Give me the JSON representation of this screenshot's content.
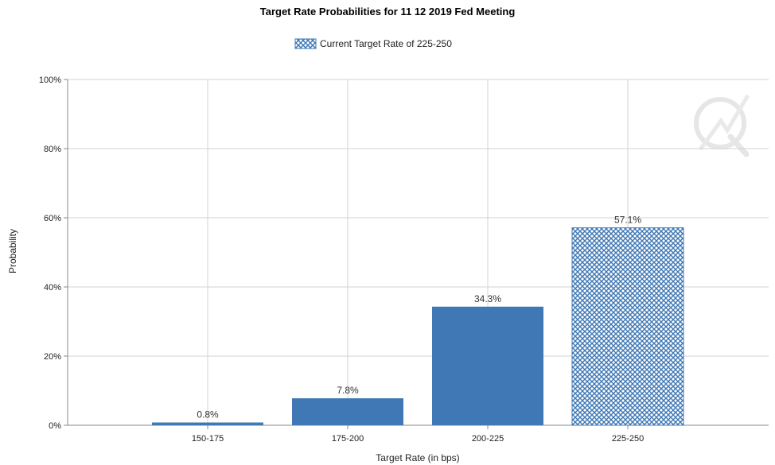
{
  "chart_data": {
    "type": "bar",
    "title": "Target Rate Probabilities for 11 12 2019 Fed Meeting",
    "legend": {
      "label": "Current Target Rate of 225-250",
      "placement": "top-center"
    },
    "categories": [
      "150-175",
      "175-200",
      "200-225",
      "225-250"
    ],
    "values": [
      0.8,
      7.8,
      34.3,
      57.1
    ],
    "data_labels": [
      "0.8%",
      "7.8%",
      "34.3%",
      "57.1%"
    ],
    "highlighted_category": "225-250",
    "xlabel": "Target Rate (in bps)",
    "ylabel": "Probability",
    "ylim": [
      0,
      100
    ],
    "yticks": [
      0,
      20,
      40,
      60,
      80,
      100
    ],
    "ytick_labels": [
      "0%",
      "20%",
      "40%",
      "60%",
      "80%",
      "100%"
    ],
    "grid": true,
    "colors": {
      "bar": "#3f78b4",
      "highlight_pattern_line": "#3f78b4",
      "highlight_pattern_bg": "#ffffff",
      "grid": "#d3d3d3"
    }
  }
}
